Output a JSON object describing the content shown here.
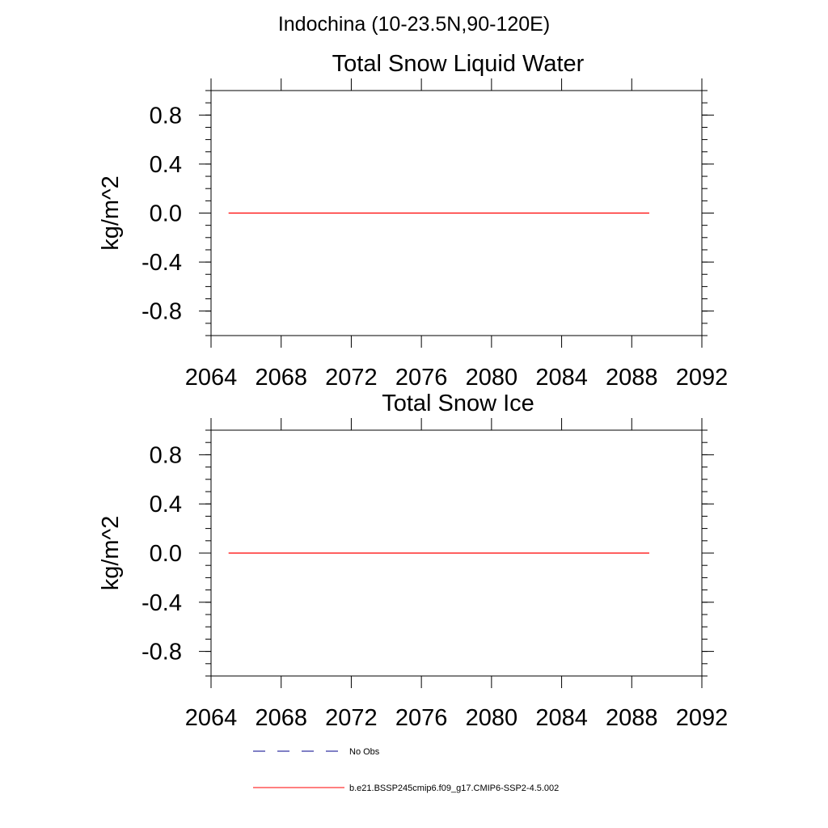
{
  "suptitle": "Indochina (10-23.5N,90-120E)",
  "chart_data": [
    {
      "type": "line",
      "title": "Total Snow Liquid Water",
      "ylabel": "kg/m^2",
      "xlim": [
        2064,
        2092
      ],
      "ylim": [
        -1.0,
        1.0
      ],
      "xticks": [
        2064,
        2068,
        2072,
        2076,
        2080,
        2084,
        2088,
        2092
      ],
      "xtick_labels": [
        "2064",
        "2068",
        "2072",
        "2076",
        "2080",
        "2084",
        "2088",
        "2092"
      ],
      "yticks": [
        0.8,
        0.4,
        0.0,
        -0.4,
        -0.8
      ],
      "ytick_labels": [
        "0.8",
        "0.4",
        "0.0",
        "-0.4",
        "-0.8"
      ],
      "series": [
        {
          "name": "b.e21.BSSP245cmip6.f09_g17.CMIP6-SSP2-4.5.002",
          "color": "#ff0000",
          "x": [
            2065,
            2089
          ],
          "y": [
            0.0,
            0.0
          ]
        }
      ]
    },
    {
      "type": "line",
      "title": "Total Snow Ice",
      "ylabel": "kg/m^2",
      "xlim": [
        2064,
        2092
      ],
      "ylim": [
        -1.0,
        1.0
      ],
      "xticks": [
        2064,
        2068,
        2072,
        2076,
        2080,
        2084,
        2088,
        2092
      ],
      "xtick_labels": [
        "2064",
        "2068",
        "2072",
        "2076",
        "2080",
        "2084",
        "2088",
        "2092"
      ],
      "yticks": [
        0.8,
        0.4,
        0.0,
        -0.4,
        -0.8
      ],
      "ytick_labels": [
        "0.8",
        "0.4",
        "0.0",
        "-0.4",
        "-0.8"
      ],
      "series": [
        {
          "name": "b.e21.BSSP245cmip6.f09_g17.CMIP6-SSP2-4.5.002",
          "color": "#ff0000",
          "x": [
            2065,
            2089
          ],
          "y": [
            0.0,
            0.0
          ]
        }
      ]
    }
  ],
  "legend": {
    "placement": "bottom",
    "entries": [
      {
        "label": "No Obs",
        "style": "dashed",
        "color": "#00008b"
      },
      {
        "label": "b.e21.BSSP245cmip6.f09_g17.CMIP6-SSP2-4.5.002",
        "style": "solid",
        "color": "#ff0000"
      }
    ]
  }
}
